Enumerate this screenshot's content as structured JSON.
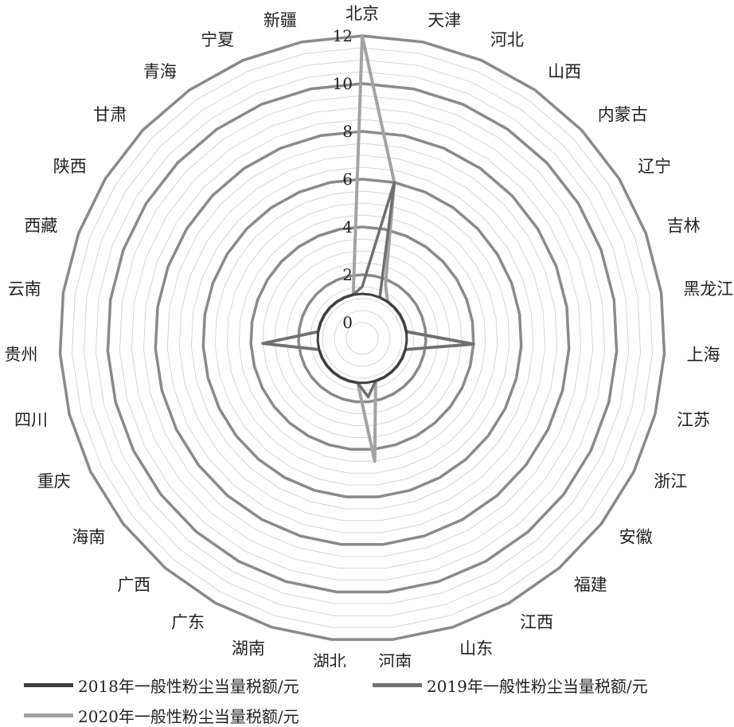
{
  "chart_data": {
    "type": "radar",
    "categories": [
      "北京",
      "天津",
      "河北",
      "山西",
      "内蒙古",
      "辽宁",
      "吉林",
      "黑龙江",
      "上海",
      "江苏",
      "浙江",
      "安徽",
      "福建",
      "江西",
      "山东",
      "河南",
      "湖北",
      "湖南",
      "广东",
      "广西",
      "海南",
      "重庆",
      "四川",
      "贵州",
      "云南",
      "西藏",
      "陕西",
      "甘肃",
      "青海",
      "宁夏",
      "新疆"
    ],
    "rlim": [
      0,
      12
    ],
    "rticks": [
      0,
      2,
      4,
      6,
      8,
      10,
      12
    ],
    "grid": true,
    "legend_position": "bottom",
    "series": [
      {
        "name": "2018年一般性粉尘当量税额/元",
        "values": [
          1.2,
          1.2,
          1.2,
          1.2,
          1.2,
          1.2,
          1.2,
          1.2,
          1.2,
          1.2,
          1.2,
          1.2,
          1.2,
          1.2,
          1.2,
          1.2,
          1.2,
          1.2,
          1.2,
          1.2,
          1.2,
          1.2,
          1.2,
          1.2,
          1.2,
          1.2,
          1.2,
          1.2,
          1.2,
          1.2,
          1.2
        ]
      },
      {
        "name": "2019年一般性粉尘当量税额/元",
        "values": [
          1.5,
          6,
          1.2,
          1.2,
          1.2,
          1.2,
          1.2,
          1.2,
          4,
          1.2,
          1.2,
          1.2,
          1.2,
          1.2,
          1.2,
          1.8,
          1.2,
          1.2,
          1.2,
          1.2,
          1.2,
          1.2,
          1.2,
          3.5,
          1.2,
          1.2,
          1.2,
          1.2,
          1.2,
          1.2,
          1.2
        ]
      },
      {
        "name": "2020年一般性粉尘当量税额/元",
        "values": [
          12,
          6,
          1.8,
          1.2,
          1.2,
          1.2,
          1.2,
          1.2,
          4,
          1.2,
          1.2,
          1.2,
          1.2,
          1.2,
          1.2,
          4.5,
          1.2,
          1.2,
          1.2,
          1.2,
          1.2,
          1.2,
          1.2,
          3.5,
          1.2,
          1.2,
          1.2,
          1.2,
          1.2,
          1.2,
          1.2
        ]
      }
    ],
    "colors": [
      "#3e3e3e",
      "#6f6f6f",
      "#a3a3a3"
    ]
  },
  "legend": {
    "item_2018": "2018年一般性粉尘当量税额/元",
    "item_2019": "2019年一般性粉尘当量税额/元",
    "item_2020": "2020年一般性粉尘当量税额/元"
  }
}
